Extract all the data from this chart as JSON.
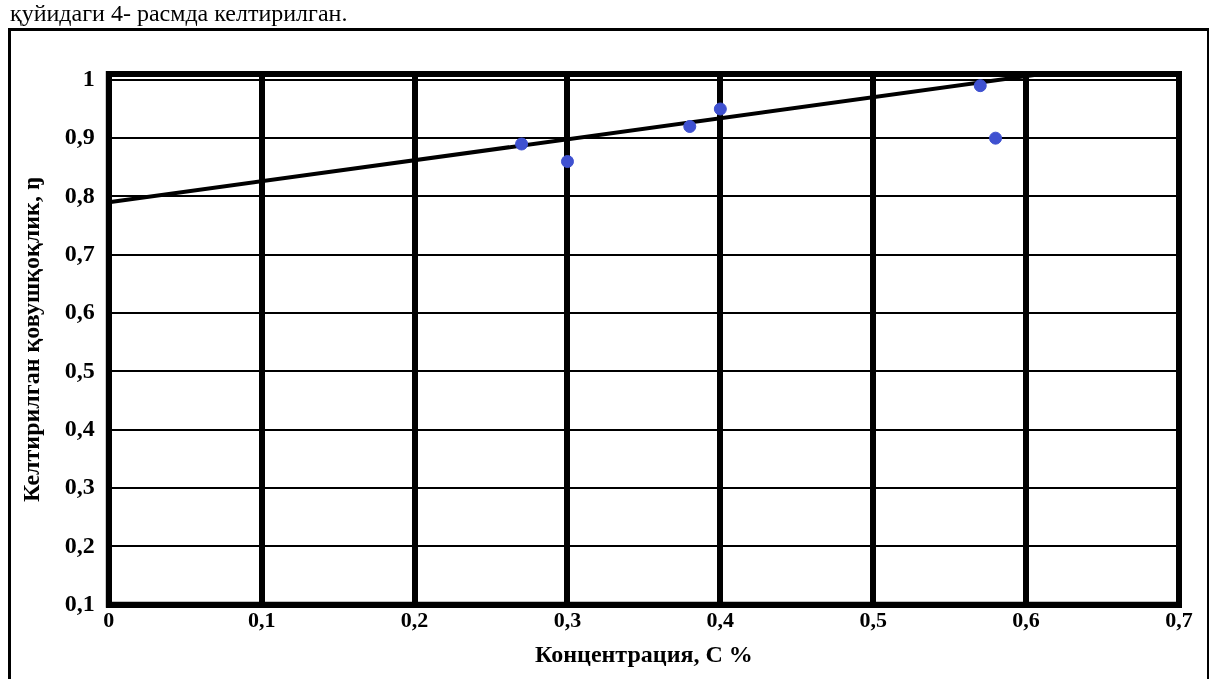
{
  "chart_data": {
    "type": "scatter",
    "xlabel": "Концентрация, С %",
    "ylabel": "Келтирилган қовушқоқлик, ŋ",
    "annotations": [
      "қуйидаги 4- расмда келтирилган."
    ],
    "x": [
      0.27,
      0.3,
      0.38,
      0.4,
      0.57,
      0.58
    ],
    "series": [
      {
        "type": "scatter",
        "color": "#3f51d0",
        "values": [
          0.89,
          0.86,
          0.92,
          0.95,
          0.99,
          0.9
        ]
      },
      {
        "type": "line",
        "color": "#000000",
        "x": [
          0,
          0.61
        ],
        "values": [
          0.79,
          1.01
        ],
        "marker": "none"
      }
    ],
    "marker": "circle",
    "grid": true,
    "legend": false,
    "xlim": [
      0,
      0.7
    ],
    "xticks": [
      {
        "value": 0,
        "label": "0"
      },
      {
        "value": 0.1,
        "label": "0,1"
      },
      {
        "value": 0.2,
        "label": "0,2"
      },
      {
        "value": 0.3,
        "label": "0,3"
      },
      {
        "value": 0.4,
        "label": "0,4"
      },
      {
        "value": 0.5,
        "label": "0,5"
      },
      {
        "value": 0.6,
        "label": "0,6"
      },
      {
        "value": 0.7,
        "label": "0,7"
      }
    ],
    "ylim": [
      0.1,
      1.01
    ],
    "yticks": [
      {
        "value": 0.1,
        "label": "0,1"
      },
      {
        "value": 0.2,
        "label": "0,2"
      },
      {
        "value": 0.3,
        "label": "0,3"
      },
      {
        "value": 0.4,
        "label": "0,4"
      },
      {
        "value": 0.5,
        "label": "0,5"
      },
      {
        "value": 0.6,
        "label": "0,6"
      },
      {
        "value": 0.7,
        "label": "0,7"
      },
      {
        "value": 0.8,
        "label": "0,8"
      },
      {
        "value": 0.9,
        "label": "0,9"
      },
      {
        "value": 1,
        "label": "1"
      }
    ]
  }
}
